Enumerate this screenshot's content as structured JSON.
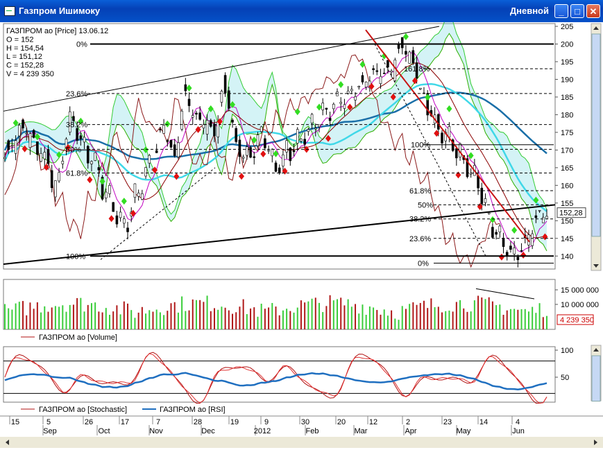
{
  "window": {
    "title": "Газпром Ишимоку",
    "mode": "Дневной"
  },
  "price_panel": {
    "header": [
      "ГАЗПРОМ ао [Price] 13.06.12",
      "O = 152",
      "H = 154,54",
      "L = 151,12",
      "C = 152,28",
      "V = 4 239 350"
    ],
    "last_price_label": "152,28",
    "fib_top": [
      "0%",
      "23.6%",
      "38.2%",
      "50%",
      "61.8%",
      "100%"
    ],
    "fib_upper": [
      "161.8%",
      "100%"
    ],
    "fib_bottom": [
      "61.8%",
      "50%",
      "38.2%",
      "23.6%",
      "0%"
    ]
  },
  "volume_panel": {
    "legend": "ГАЗПРОМ ао [Volume]",
    "axis_labels": [
      "15 000 000",
      "10 000 000"
    ],
    "last_volume_label": "4 239 350"
  },
  "osc_panel": {
    "legend_stochastic": "ГАЗПРОМ ао [Stochastic]",
    "legend_rsi": "ГАЗПРОМ ао [RSI]",
    "axis_labels": [
      "100",
      "50"
    ]
  },
  "colors": {
    "price_up": "#000000",
    "stochastic": "#b01010",
    "rsi": "#1f6fc0",
    "trend_down": "#c81414",
    "kumo": "#33cc33",
    "kumo_fill": "#3ad0e0",
    "ma_slow": "#1a6fa8",
    "ma_fast": "#40d8e8",
    "tenkan": "#8b0000",
    "kijun": "#c000c0"
  },
  "chart_data": {
    "type": "candlestick",
    "instrument": "ГАЗПРОМ ао",
    "ylim": [
      137,
      205
    ],
    "y_ticks": [
      205,
      200,
      195,
      190,
      185,
      180,
      175,
      170,
      165,
      160,
      155,
      150,
      145,
      140
    ],
    "x_day_labels": [
      "15",
      "5",
      "26",
      "17",
      "7",
      "28",
      "19",
      "9",
      "30",
      "20",
      "12",
      "2",
      "23",
      "14",
      "4"
    ],
    "x_month_labels": [
      "Sep",
      "Oct",
      "Nov",
      "Dec",
      "2012",
      "Feb",
      "Mar",
      "Apr",
      "May",
      "Jun"
    ],
    "anchors": [
      [
        0,
        169
      ],
      [
        10,
        176
      ],
      [
        22,
        168
      ],
      [
        28,
        159
      ],
      [
        36,
        178
      ],
      [
        48,
        168
      ],
      [
        56,
        158
      ],
      [
        66,
        148
      ],
      [
        74,
        158
      ],
      [
        80,
        166
      ],
      [
        88,
        176
      ],
      [
        94,
        168
      ],
      [
        100,
        185
      ],
      [
        108,
        178
      ],
      [
        116,
        176
      ],
      [
        122,
        188
      ],
      [
        128,
        172
      ],
      [
        134,
        168
      ],
      [
        142,
        174
      ],
      [
        150,
        165
      ],
      [
        158,
        170
      ],
      [
        166,
        174
      ],
      [
        176,
        180
      ],
      [
        186,
        184
      ],
      [
        196,
        188
      ],
      [
        206,
        191
      ],
      [
        214,
        194
      ],
      [
        220,
        200
      ],
      [
        226,
        194
      ],
      [
        234,
        182
      ],
      [
        242,
        175
      ],
      [
        250,
        171
      ],
      [
        256,
        165
      ],
      [
        262,
        160
      ],
      [
        270,
        148
      ],
      [
        276,
        143
      ],
      [
        282,
        140
      ],
      [
        288,
        143
      ],
      [
        294,
        150
      ],
      [
        300,
        152
      ]
    ],
    "volume_ylim": [
      0,
      16000000
    ],
    "osc_ylim": [
      0,
      100
    ],
    "osc_levels": [
      80,
      20
    ]
  }
}
